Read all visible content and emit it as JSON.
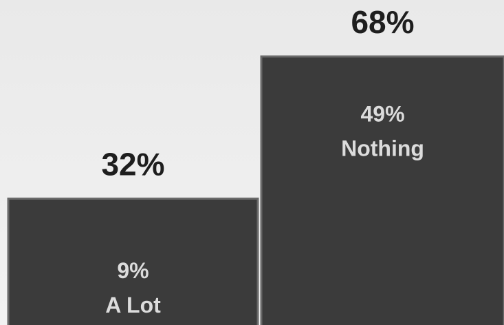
{
  "chart_data": {
    "type": "bar",
    "categories": [
      "A Lot",
      "Nothing"
    ],
    "values": [
      32,
      68
    ],
    "value_labels": [
      "32%",
      "68%"
    ],
    "sub_values": [
      9,
      49
    ],
    "sub_value_labels": [
      "9%",
      "49%"
    ],
    "color": "#3b3b3b"
  }
}
